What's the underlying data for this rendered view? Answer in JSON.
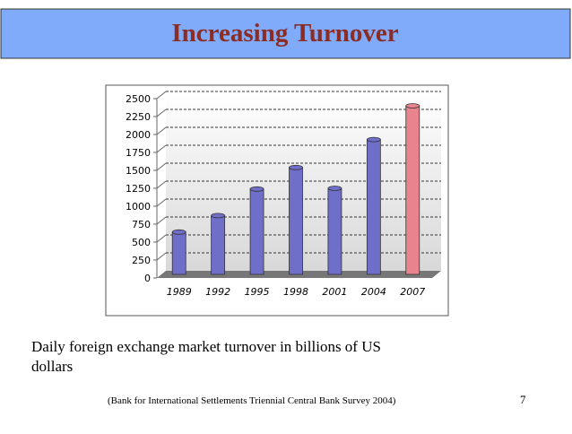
{
  "chart_data": {
    "type": "bar",
    "title": "Increasing Turnover",
    "categories": [
      "1989",
      "1992",
      "1995",
      "1998",
      "2001",
      "2004",
      "2007"
    ],
    "values": [
      590,
      820,
      1190,
      1490,
      1200,
      1880,
      2350
    ],
    "colors": [
      "#6f6fc9",
      "#6f6fc9",
      "#6f6fc9",
      "#6f6fc9",
      "#6f6fc9",
      "#6f6fc9",
      "#e8848e"
    ],
    "ylim": [
      0,
      2500
    ],
    "yticks": [
      0,
      250,
      500,
      750,
      1000,
      1250,
      1500,
      1750,
      2000,
      2250,
      2500
    ],
    "grid": true,
    "caption": "Daily foreign exchange market turnover in billions of US dollars",
    "source": "(Bank for International Settlements Triennial Central Bank Survey 2004)",
    "page_number": 7
  }
}
